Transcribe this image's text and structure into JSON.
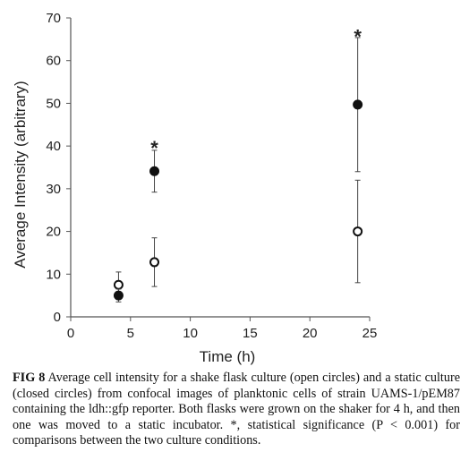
{
  "chart_data": {
    "type": "scatter",
    "xlabel": "Time (h)",
    "ylabel": "Average Intensity (arbitrary)",
    "xlim": [
      0,
      25
    ],
    "ylim": [
      0,
      70
    ],
    "xticks": [
      0,
      5,
      10,
      15,
      20,
      25
    ],
    "yticks": [
      0,
      10,
      20,
      30,
      40,
      50,
      60,
      70
    ],
    "grid": false,
    "series": [
      {
        "marker": "open-circle",
        "x": [
          4,
          7,
          24
        ],
        "y": [
          7.5,
          12.8,
          20.0
        ],
        "err": [
          3.0,
          5.7,
          12.0
        ]
      },
      {
        "marker": "closed-circle",
        "x": [
          4,
          7,
          24
        ],
        "y": [
          5.0,
          34.1,
          49.7
        ],
        "err": [
          1.5,
          4.9,
          15.7
        ]
      }
    ],
    "annotations": [
      {
        "text": "*",
        "x": 7,
        "y": 40.5
      },
      {
        "text": "*",
        "x": 24,
        "y": 66.5
      }
    ]
  },
  "caption": {
    "label": "FIG 8",
    "text": "Average cell intensity for a shake flask culture (open circles) and a static culture (closed circles) from confocal images of planktonic cells of strain UAMS-1/pEM87 containing the ldh::gfp reporter. Both flasks were grown on the shaker for 4 h, and then one was moved to a static incubator. *, statistical significance (P < 0.001) for comparisons between the two culture conditions."
  },
  "colors": {
    "ink": "#111111",
    "axis": "#555555",
    "errorbar": "#444444"
  }
}
